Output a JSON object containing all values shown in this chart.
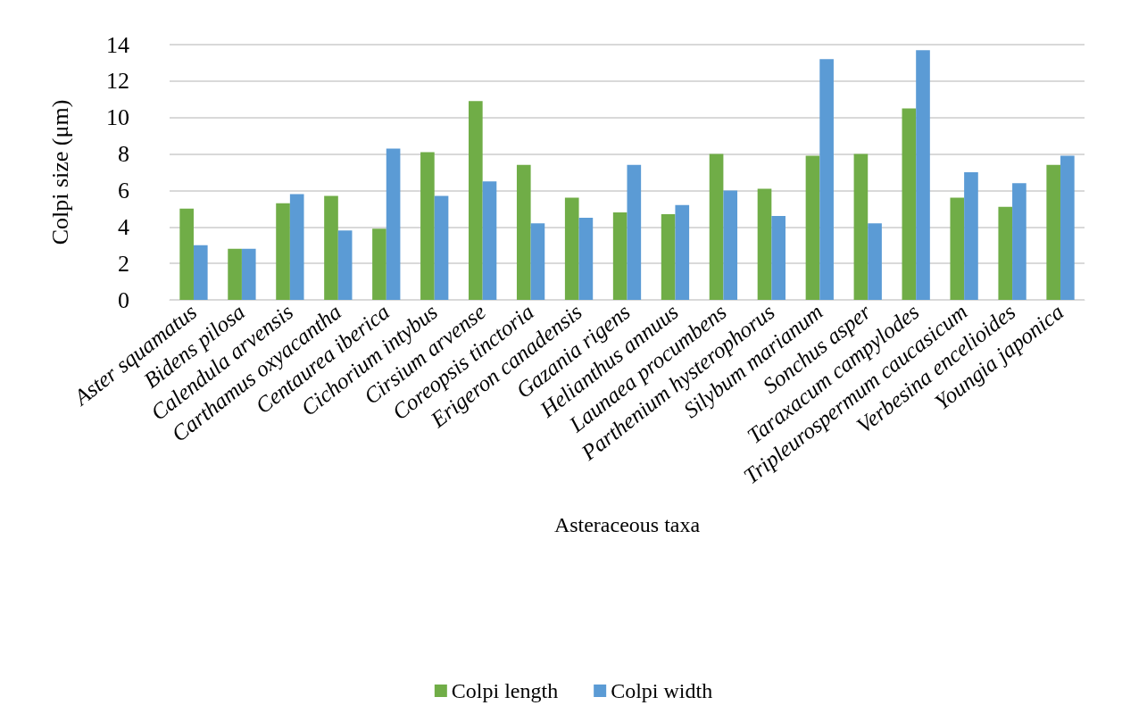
{
  "chart_data": {
    "type": "bar",
    "xlabel": "Asteraceous taxa",
    "ylabel": "Colpi size (μm)",
    "categories": [
      "Aster squamatus",
      "Bidens pilosa",
      "Calendula arvensis",
      "Carthamus oxyacantha",
      "Centaurea iberica",
      "Cichorium intybus",
      "Cirsium arvense",
      "Coreopsis tinctoria",
      "Erigeron canadensis",
      "Gazania rigens",
      "Helianthus annuus",
      "Launaea procumbens",
      "Parthenium hysterophorus",
      "Silybum marianum",
      "Sonchus asper",
      "Taraxacum campylodes",
      "Tripleurospermum caucasicum",
      "Verbesina encelioides",
      "Youngia japonica"
    ],
    "series": [
      {
        "name": "Colpi length",
        "color": "#70ad47",
        "values": [
          5.0,
          2.8,
          5.3,
          5.7,
          3.9,
          8.1,
          10.9,
          7.4,
          5.6,
          4.8,
          4.7,
          8.0,
          6.1,
          7.9,
          8.0,
          10.5,
          5.6,
          5.1,
          7.4
        ]
      },
      {
        "name": "Colpi width",
        "color": "#5b9bd5",
        "values": [
          3.0,
          2.8,
          5.8,
          3.8,
          8.3,
          5.7,
          6.5,
          4.2,
          4.5,
          7.4,
          5.2,
          6.0,
          4.6,
          13.2,
          4.2,
          13.7,
          7.0,
          6.4,
          7.9
        ]
      }
    ],
    "ylim": [
      0,
      14
    ],
    "yticks": [
      0,
      2,
      4,
      6,
      8,
      10,
      12,
      14
    ],
    "grid": "y",
    "legend": "bottom"
  }
}
